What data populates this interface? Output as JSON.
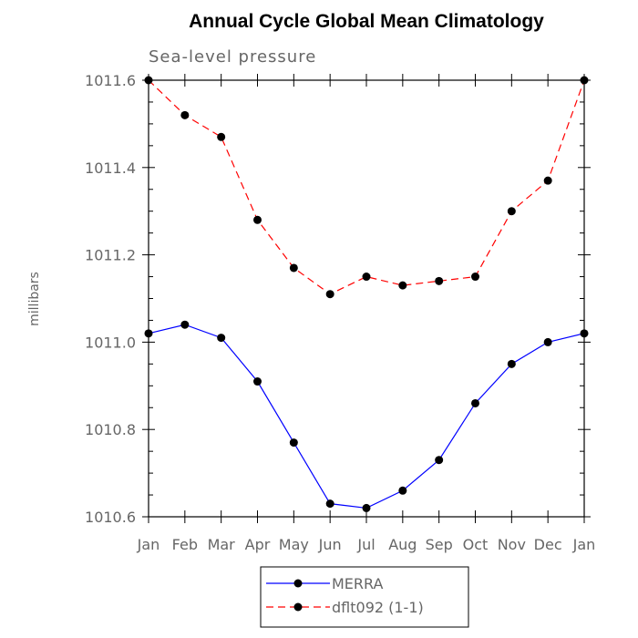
{
  "chart_data": {
    "type": "line",
    "title": "Annual Cycle Global Mean Climatology",
    "subtitle": "Sea-level pressure",
    "xlabel": "",
    "ylabel": "millibars",
    "categories": [
      "Jan",
      "Feb",
      "Mar",
      "Apr",
      "May",
      "Jun",
      "Jul",
      "Aug",
      "Sep",
      "Oct",
      "Nov",
      "Dec",
      "Jan"
    ],
    "ylim": [
      1010.6,
      1011.6
    ],
    "yticks": [
      "1010.6",
      "1010.8",
      "1011.0",
      "1011.2",
      "1011.4",
      "1011.6"
    ],
    "grid": false,
    "legend_position": "bottom",
    "series": [
      {
        "name": "MERRA",
        "color": "#0000ff",
        "line_style": "solid",
        "marker": "filled-circle",
        "values": [
          1011.02,
          1011.04,
          1011.01,
          1010.91,
          1010.77,
          1010.63,
          1010.62,
          1010.66,
          1010.73,
          1010.86,
          1010.95,
          1011.0,
          1011.02
        ]
      },
      {
        "name": "dflt092 (1-1)",
        "color": "#ff0000",
        "line_style": "dashed",
        "marker": "filled-circle",
        "values": [
          1011.6,
          1011.52,
          1011.47,
          1011.28,
          1011.17,
          1011.11,
          1011.15,
          1011.13,
          1011.14,
          1011.15,
          1011.3,
          1011.37,
          1011.6
        ]
      }
    ]
  }
}
